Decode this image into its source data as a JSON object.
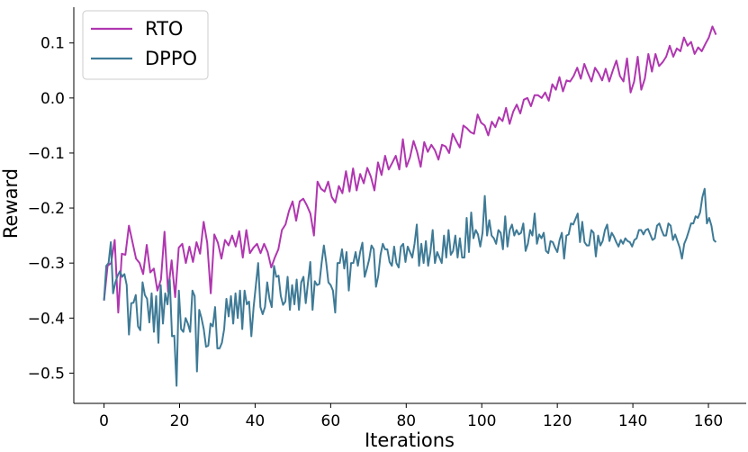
{
  "chart_data": {
    "type": "line",
    "title": "",
    "xlabel": "Iterations",
    "ylabel": "Reward",
    "xlim": [
      -8,
      170
    ],
    "ylim": [
      -0.555,
      0.165
    ],
    "xticks": [
      0,
      20,
      40,
      60,
      80,
      100,
      120,
      140,
      160
    ],
    "xtick_labels": [
      "0",
      "20",
      "40",
      "60",
      "80",
      "100",
      "120",
      "140",
      "160"
    ],
    "yticks": [
      -0.5,
      -0.4,
      -0.3,
      -0.2,
      -0.1,
      0.0,
      0.1
    ],
    "ytick_labels": [
      "−0.5",
      "−0.4",
      "−0.3",
      "−0.2",
      "−0.1",
      "0.0",
      "0.1"
    ],
    "grid": false,
    "legend": "upper-left",
    "series": [
      {
        "name": "RTO",
        "color": "#b036b0",
        "x_start": 0,
        "values": [
          -0.368,
          -0.305,
          -0.3,
          -0.258,
          -0.39,
          -0.283,
          -0.285,
          -0.232,
          -0.262,
          -0.292,
          -0.3,
          -0.32,
          -0.267,
          -0.317,
          -0.31,
          -0.35,
          -0.33,
          -0.243,
          -0.352,
          -0.295,
          -0.362,
          -0.272,
          -0.265,
          -0.3,
          -0.27,
          -0.298,
          -0.262,
          -0.283,
          -0.225,
          -0.263,
          -0.355,
          -0.248,
          -0.263,
          -0.292,
          -0.258,
          -0.268,
          -0.25,
          -0.27,
          -0.242,
          -0.29,
          -0.24,
          -0.282,
          -0.272,
          -0.265,
          -0.282,
          -0.265,
          -0.28,
          -0.308,
          -0.29,
          -0.275,
          -0.24,
          -0.23,
          -0.205,
          -0.188,
          -0.223,
          -0.188,
          -0.183,
          -0.195,
          -0.21,
          -0.25,
          -0.152,
          -0.165,
          -0.17,
          -0.152,
          -0.18,
          -0.19,
          -0.16,
          -0.173,
          -0.133,
          -0.17,
          -0.128,
          -0.168,
          -0.138,
          -0.155,
          -0.127,
          -0.143,
          -0.168,
          -0.117,
          -0.14,
          -0.105,
          -0.13,
          -0.118,
          -0.105,
          -0.13,
          -0.075,
          -0.125,
          -0.108,
          -0.078,
          -0.098,
          -0.125,
          -0.08,
          -0.098,
          -0.085,
          -0.095,
          -0.112,
          -0.085,
          -0.088,
          -0.1,
          -0.065,
          -0.078,
          -0.09,
          -0.05,
          -0.055,
          -0.062,
          -0.065,
          -0.03,
          -0.045,
          -0.05,
          -0.068,
          -0.043,
          -0.053,
          -0.035,
          -0.042,
          -0.018,
          -0.047,
          -0.025,
          -0.012,
          -0.028,
          -0.003,
          0.0,
          -0.015,
          0.005,
          0.005,
          0.0,
          0.01,
          -0.005,
          0.025,
          0.015,
          0.038,
          0.012,
          0.032,
          0.03,
          0.04,
          0.055,
          0.035,
          0.062,
          0.045,
          0.03,
          0.055,
          0.045,
          0.032,
          0.053,
          0.03,
          0.05,
          0.068,
          0.04,
          0.03,
          0.072,
          0.01,
          0.03,
          0.075,
          0.015,
          0.035,
          0.08,
          0.048,
          0.08,
          0.058,
          0.065,
          0.075,
          0.095,
          0.075,
          0.09,
          0.085,
          0.11,
          0.095,
          0.102,
          0.08,
          0.092,
          0.085,
          0.098,
          0.11,
          0.13,
          0.115
        ]
      },
      {
        "name": "DPPO",
        "color": "#3e7a96",
        "x_start": 0,
        "values": [
          -0.368,
          -0.305,
          -0.3,
          -0.262,
          -0.355,
          -0.335,
          -0.323,
          -0.315,
          -0.325,
          -0.32,
          -0.34,
          -0.43,
          -0.373,
          -0.372,
          -0.358,
          -0.415,
          -0.422,
          -0.335,
          -0.358,
          -0.365,
          -0.408,
          -0.355,
          -0.425,
          -0.36,
          -0.445,
          -0.34,
          -0.41,
          -0.355,
          -0.375,
          -0.33,
          -0.433,
          -0.432,
          -0.523,
          -0.35,
          -0.42,
          -0.425,
          -0.4,
          -0.41,
          -0.425,
          -0.35,
          -0.36,
          -0.497,
          -0.385,
          -0.4,
          -0.42,
          -0.452,
          -0.45,
          -0.41,
          -0.415,
          -0.38,
          -0.455,
          -0.455,
          -0.445,
          -0.42,
          -0.365,
          -0.397,
          -0.36,
          -0.41,
          -0.355,
          -0.4,
          -0.35,
          -0.42,
          -0.35,
          -0.375,
          -0.37,
          -0.433,
          -0.38,
          -0.34,
          -0.3,
          -0.38,
          -0.393,
          -0.38,
          -0.335,
          -0.365,
          -0.38,
          -0.305,
          -0.325,
          -0.323,
          -0.36,
          -0.376,
          -0.37,
          -0.325,
          -0.385,
          -0.34,
          -0.375,
          -0.33,
          -0.385,
          -0.335,
          -0.325,
          -0.373,
          -0.335,
          -0.298,
          -0.385,
          -0.333,
          -0.34,
          -0.338,
          -0.3,
          -0.268,
          -0.298,
          -0.335,
          -0.34,
          -0.35,
          -0.39,
          -0.3,
          -0.3,
          -0.275,
          -0.31,
          -0.28,
          -0.35,
          -0.3,
          -0.3,
          -0.28,
          -0.305,
          -0.28,
          -0.263,
          -0.325,
          -0.31,
          -0.293,
          -0.268,
          -0.275,
          -0.343,
          -0.323,
          -0.285,
          -0.265,
          -0.275,
          -0.275,
          -0.298,
          -0.305,
          -0.27,
          -0.3,
          -0.308,
          -0.27,
          -0.265,
          -0.298,
          -0.27,
          -0.28,
          -0.29,
          -0.265,
          -0.23,
          -0.305,
          -0.265,
          -0.3,
          -0.26,
          -0.305,
          -0.28,
          -0.24,
          -0.3,
          -0.28,
          -0.29,
          -0.3,
          -0.25,
          -0.29,
          -0.24,
          -0.285,
          -0.278,
          -0.25,
          -0.29,
          -0.255,
          -0.29,
          -0.29,
          -0.218,
          -0.28,
          -0.208,
          -0.255,
          -0.24,
          -0.248,
          -0.27,
          -0.245,
          -0.178,
          -0.25,
          -0.222,
          -0.25,
          -0.255,
          -0.265,
          -0.24,
          -0.245,
          -0.275,
          -0.215,
          -0.27,
          -0.24,
          -0.23,
          -0.25,
          -0.24,
          -0.248,
          -0.245,
          -0.228,
          -0.278,
          -0.265,
          -0.24,
          -0.25,
          -0.21,
          -0.265,
          -0.248,
          -0.255,
          -0.245,
          -0.278,
          -0.282,
          -0.26,
          -0.262,
          -0.272,
          -0.28,
          -0.258,
          -0.245,
          -0.292,
          -0.25,
          -0.248,
          -0.228,
          -0.23,
          -0.22,
          -0.21,
          -0.262,
          -0.225,
          -0.262,
          -0.268,
          -0.268,
          -0.24,
          -0.245,
          -0.288,
          -0.25,
          -0.268,
          -0.26,
          -0.24,
          -0.23,
          -0.26,
          -0.245,
          -0.252,
          -0.262,
          -0.27,
          -0.258,
          -0.265,
          -0.255,
          -0.26,
          -0.262,
          -0.27,
          -0.258,
          -0.255,
          -0.24,
          -0.24,
          -0.248,
          -0.24,
          -0.238,
          -0.248,
          -0.258,
          -0.255,
          -0.232,
          -0.228,
          -0.24,
          -0.25,
          -0.25,
          -0.228,
          -0.232,
          -0.258,
          -0.248,
          -0.26,
          -0.272,
          -0.292,
          -0.265,
          -0.255,
          -0.242,
          -0.228,
          -0.228,
          -0.215,
          -0.218,
          -0.208,
          -0.18,
          -0.165,
          -0.228,
          -0.218,
          -0.232,
          -0.258,
          -0.262
        ]
      }
    ]
  }
}
